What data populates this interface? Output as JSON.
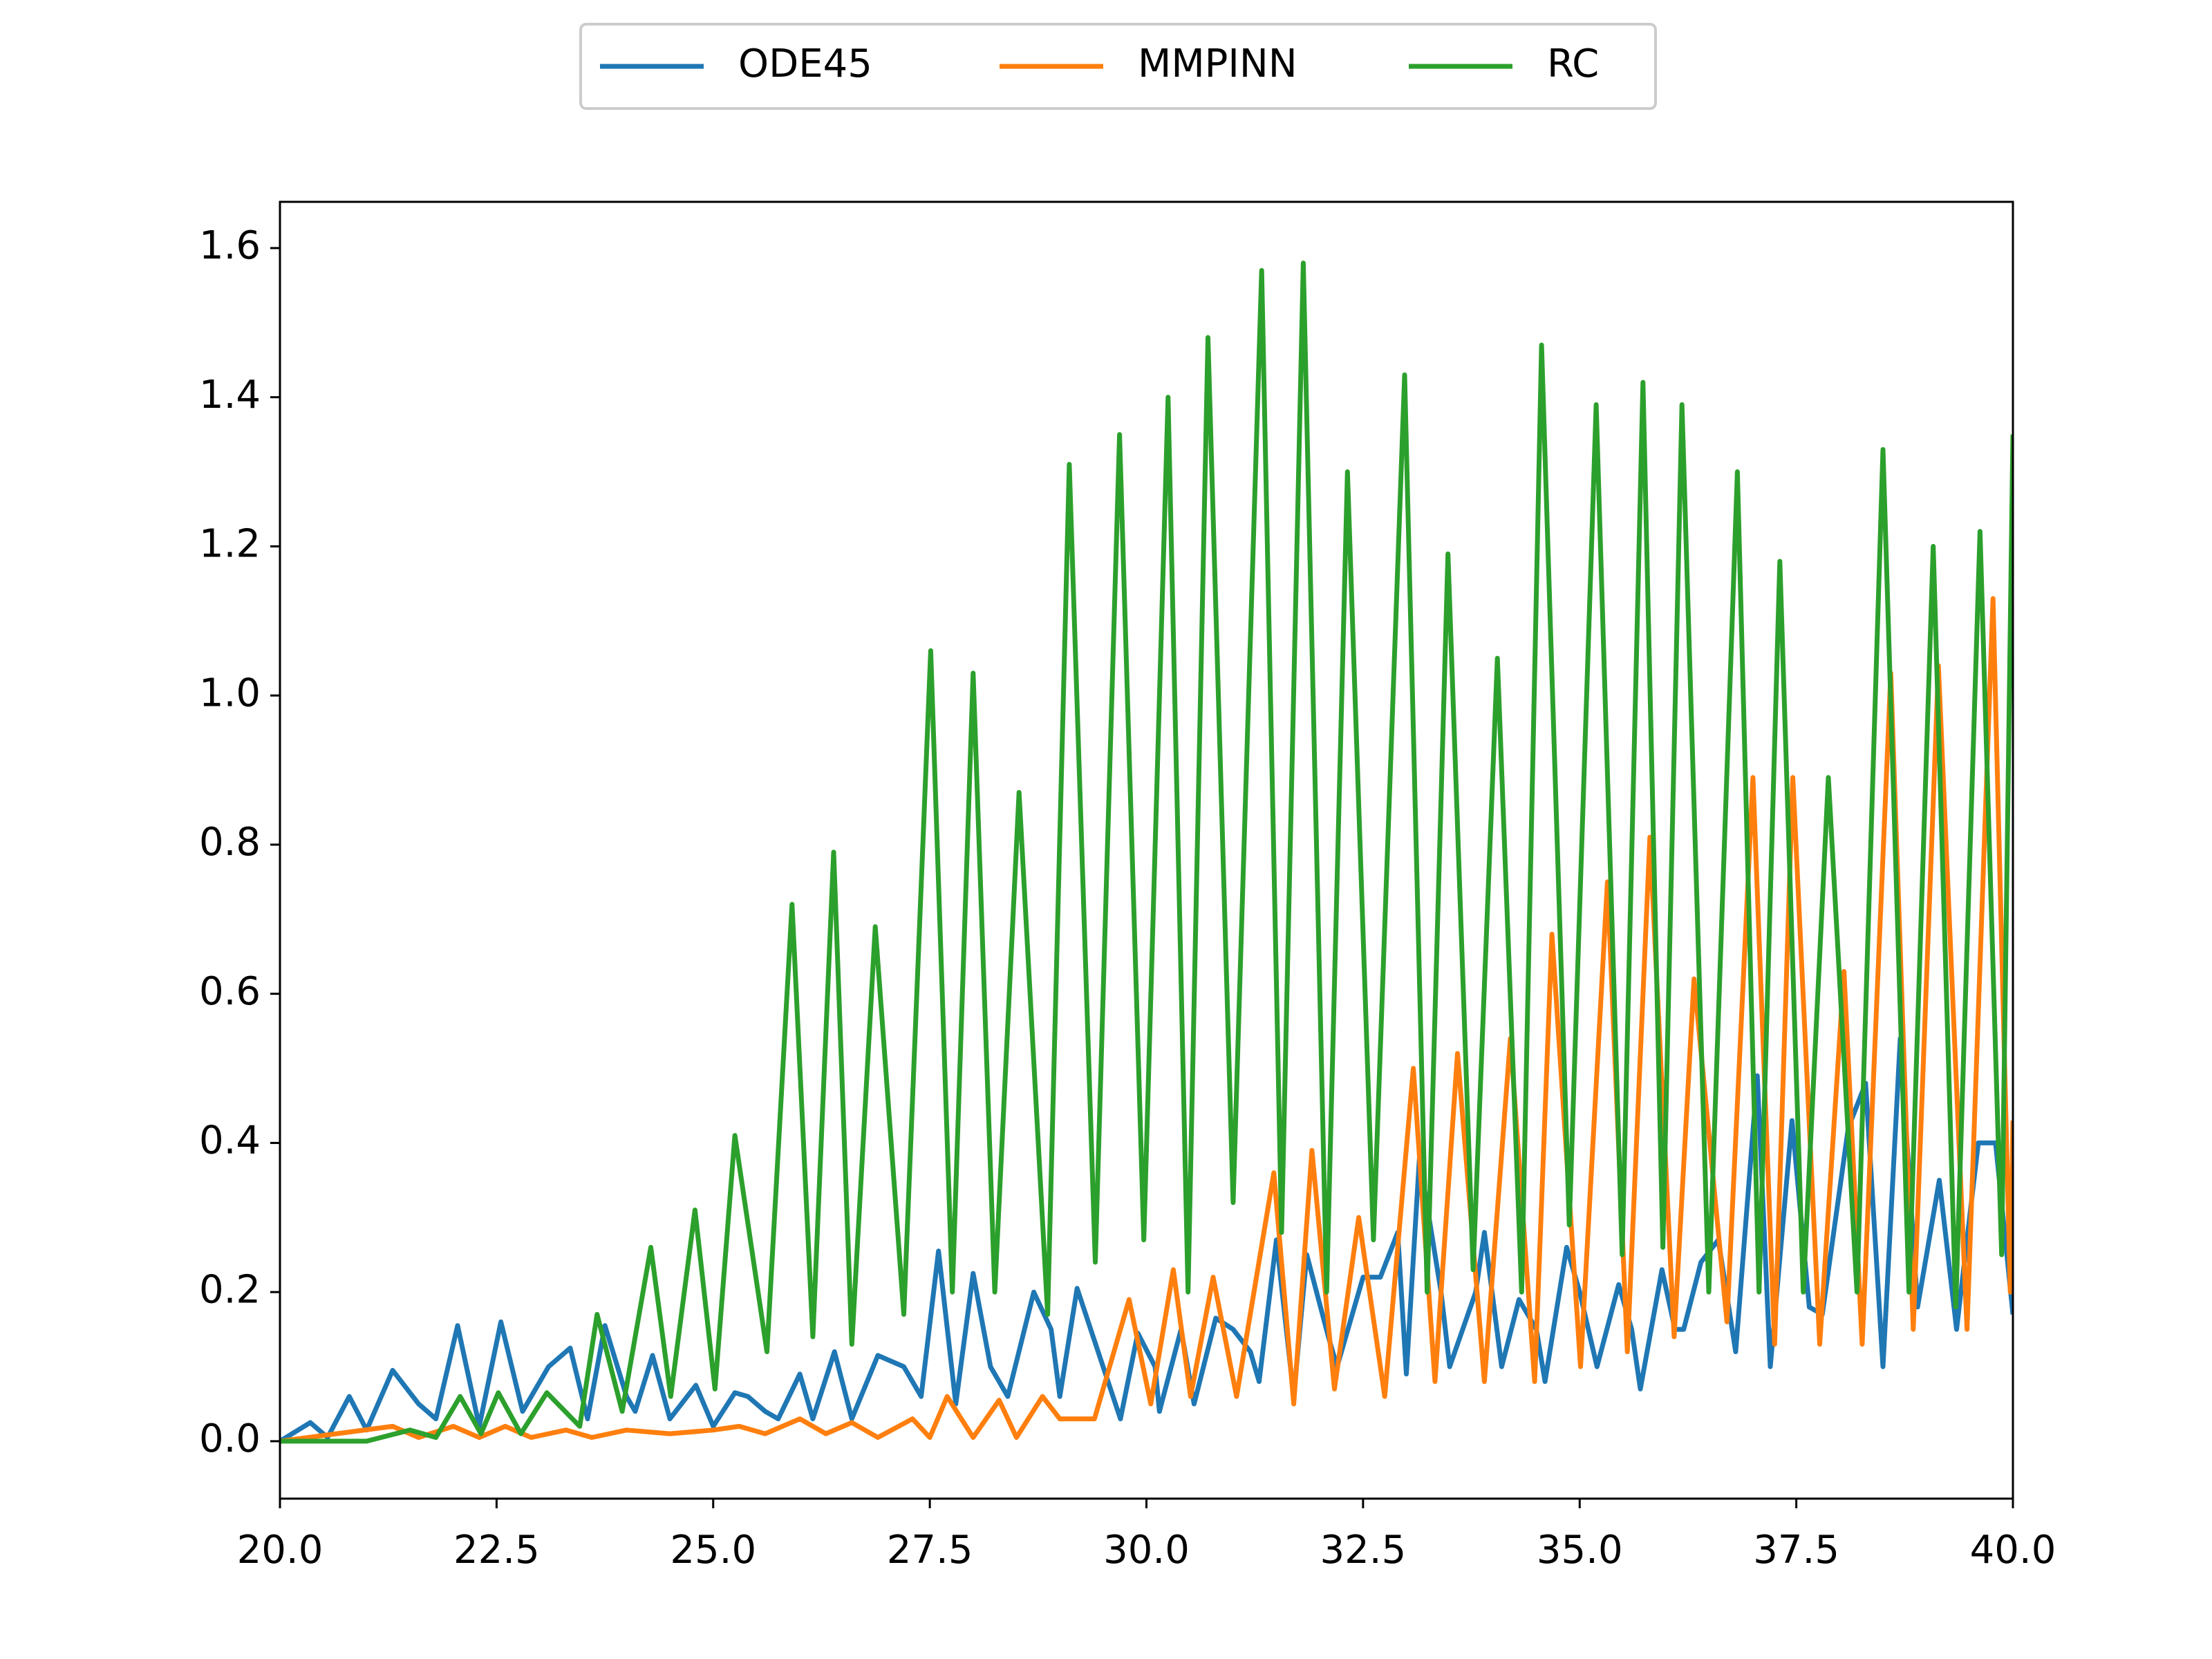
{
  "chart_data": {
    "type": "line",
    "xlim": [
      20,
      40
    ],
    "xticks": [
      {
        "value": 20,
        "label": "20.0"
      },
      22.5,
      {
        "value": 25,
        "label": "25.0"
      },
      27.5,
      {
        "value": 30,
        "label": "30.0"
      },
      32.5,
      {
        "value": 35,
        "label": "35.0"
      },
      37.5,
      {
        "value": 40,
        "label": "40.0"
      }
    ],
    "ylim": [
      -0.077,
      1.662
    ],
    "yticks": [
      {
        "value": 0,
        "label": "0.0"
      },
      0.2,
      0.4,
      0.6,
      0.8,
      {
        "value": 1,
        "label": "1.0"
      },
      1.2,
      1.4,
      1.6
    ],
    "grid": false,
    "legend": "top-outside",
    "series": [
      {
        "name": "ODE45",
        "color": "#1f77b4",
        "x": [
          20,
          20.35,
          20.55,
          20.8,
          21.0,
          21.3,
          21.6,
          21.8,
          22.05,
          22.3,
          22.55,
          22.8,
          23.1,
          23.35,
          23.55,
          23.75,
          24.0,
          24.1,
          24.3,
          24.5,
          24.8,
          25.0,
          25.25,
          25.4,
          25.6,
          25.75,
          26.0,
          26.15,
          26.4,
          26.6,
          26.9,
          27.2,
          27.4,
          27.6,
          27.8,
          28.0,
          28.2,
          28.4,
          28.7,
          28.9,
          29.0,
          29.2,
          29.5,
          29.7,
          29.9,
          30.1,
          30.15,
          30.4,
          30.55,
          30.8,
          31.0,
          31.2,
          31.3,
          31.5,
          31.7,
          31.85,
          32.1,
          32.2,
          32.5,
          32.7,
          32.9,
          33.0,
          33.15,
          33.4,
          33.5,
          33.8,
          33.9,
          34.1,
          34.3,
          34.5,
          34.6,
          34.85,
          35.0,
          35.2,
          35.45,
          35.6,
          35.7,
          35.95,
          36.1,
          36.2,
          36.4,
          36.6,
          36.8,
          37.05,
          37.2,
          37.45,
          37.65,
          37.8,
          38.1,
          38.3,
          38.5,
          38.7,
          38.9,
          39.15,
          39.35,
          39.6,
          39.8,
          40
        ],
        "values": [
          0,
          0.025,
          0.005,
          0.06,
          0.015,
          0.095,
          0.05,
          0.03,
          0.155,
          0.02,
          0.16,
          0.04,
          0.1,
          0.125,
          0.03,
          0.155,
          0.06,
          0.04,
          0.115,
          0.03,
          0.075,
          0.02,
          0.065,
          0.06,
          0.04,
          0.03,
          0.09,
          0.03,
          0.12,
          0.03,
          0.115,
          0.1,
          0.06,
          0.255,
          0.05,
          0.225,
          0.1,
          0.06,
          0.2,
          0.15,
          0.06,
          0.205,
          0.1,
          0.03,
          0.145,
          0.1,
          0.04,
          0.15,
          0.05,
          0.165,
          0.15,
          0.12,
          0.08,
          0.27,
          0.06,
          0.25,
          0.14,
          0.1,
          0.22,
          0.22,
          0.28,
          0.09,
          0.38,
          0.2,
          0.1,
          0.2,
          0.28,
          0.1,
          0.19,
          0.15,
          0.08,
          0.26,
          0.2,
          0.1,
          0.21,
          0.15,
          0.07,
          0.23,
          0.15,
          0.15,
          0.24,
          0.27,
          0.12,
          0.49,
          0.1,
          0.43,
          0.18,
          0.17,
          0.42,
          0.48,
          0.1,
          0.54,
          0.18,
          0.35,
          0.15,
          0.4,
          0.4,
          0.17
        ]
      },
      {
        "name": "MMPINN",
        "color": "#ff7f0e",
        "x": [
          20,
          21.3,
          21.6,
          22.0,
          22.3,
          22.6,
          22.9,
          23.3,
          23.6,
          24.0,
          24.5,
          25.0,
          25.3,
          25.6,
          26.0,
          26.3,
          26.6,
          26.9,
          27.3,
          27.5,
          27.7,
          28.0,
          28.3,
          28.5,
          28.8,
          29.0,
          29.4,
          29.8,
          30.05,
          30.31,
          30.51,
          30.77,
          31.04,
          31.47,
          31.7,
          31.91,
          32.17,
          32.45,
          32.75,
          33.08,
          33.33,
          33.59,
          33.9,
          34.2,
          34.48,
          34.68,
          35.01,
          35.32,
          35.55,
          35.81,
          36.09,
          36.32,
          36.7,
          37.0,
          37.25,
          37.46,
          37.77,
          38.05,
          38.26,
          38.59,
          38.85,
          39.14,
          39.47,
          39.77,
          39.97,
          40
        ],
        "values": [
          0,
          0.02,
          0.005,
          0.02,
          0.005,
          0.02,
          0.005,
          0.015,
          0.005,
          0.015,
          0.01,
          0.015,
          0.02,
          0.01,
          0.03,
          0.01,
          0.025,
          0.005,
          0.03,
          0.005,
          0.06,
          0.005,
          0.055,
          0.005,
          0.06,
          0.03,
          0.03,
          0.19,
          0.05,
          0.23,
          0.06,
          0.22,
          0.06,
          0.36,
          0.05,
          0.39,
          0.07,
          0.3,
          0.06,
          0.5,
          0.08,
          0.52,
          0.08,
          0.54,
          0.08,
          0.68,
          0.1,
          0.75,
          0.12,
          0.81,
          0.14,
          0.62,
          0.16,
          0.89,
          0.13,
          0.89,
          0.13,
          0.63,
          0.13,
          1.03,
          0.15,
          1.04,
          0.15,
          1.13,
          0.2,
          0.43
        ]
      },
      {
        "name": "RC",
        "color": "#2ca02c",
        "x": [
          20,
          21.0,
          21.5,
          21.8,
          22.08,
          22.32,
          22.52,
          22.78,
          23.08,
          23.46,
          23.66,
          23.95,
          24.28,
          24.51,
          24.79,
          25.02,
          25.25,
          25.62,
          25.91,
          26.15,
          26.39,
          26.6,
          26.87,
          27.2,
          27.51,
          27.76,
          28.0,
          28.25,
          28.53,
          28.86,
          29.11,
          29.41,
          29.69,
          29.97,
          30.25,
          30.48,
          30.71,
          31.0,
          31.33,
          31.56,
          31.81,
          32.08,
          32.32,
          32.62,
          32.98,
          33.24,
          33.48,
          33.77,
          34.05,
          34.33,
          34.56,
          34.88,
          35.19,
          35.49,
          35.73,
          35.96,
          36.18,
          36.49,
          36.82,
          37.07,
          37.31,
          37.58,
          37.87,
          38.2,
          38.5,
          38.8,
          39.08,
          39.34,
          39.62,
          39.87,
          40
        ],
        "values": [
          0,
          0,
          0.015,
          0.005,
          0.06,
          0.01,
          0.065,
          0.01,
          0.065,
          0.02,
          0.17,
          0.04,
          0.26,
          0.06,
          0.31,
          0.07,
          0.41,
          0.12,
          0.72,
          0.14,
          0.79,
          0.13,
          0.69,
          0.17,
          1.06,
          0.2,
          1.03,
          0.2,
          0.87,
          0.17,
          1.31,
          0.24,
          1.35,
          0.27,
          1.4,
          0.2,
          1.48,
          0.32,
          1.57,
          0.28,
          1.58,
          0.2,
          1.3,
          0.27,
          1.43,
          0.2,
          1.19,
          0.23,
          1.05,
          0.2,
          1.47,
          0.29,
          1.39,
          0.25,
          1.42,
          0.26,
          1.39,
          0.2,
          1.3,
          0.2,
          1.18,
          0.2,
          0.89,
          0.2,
          1.33,
          0.2,
          1.2,
          0.18,
          1.22,
          0.25,
          1.35
        ]
      }
    ]
  }
}
